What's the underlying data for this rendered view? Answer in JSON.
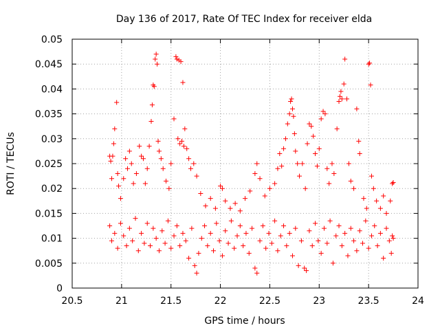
{
  "chart_data": {
    "type": "scatter",
    "title": "Day 136 of 2017, Rate Of TEC Index for receiver elda",
    "xlabel": "GPS time / hours",
    "ylabel": "ROTI / TECUs",
    "xlim": [
      20.5,
      24
    ],
    "ylim": [
      0,
      0.05
    ],
    "x_ticks": [
      20.5,
      21,
      21.5,
      22,
      22.5,
      23,
      23.5,
      24
    ],
    "x_tick_labels": [
      "20.5",
      "21",
      "21.5",
      "22",
      "22.5",
      "23",
      "23.5",
      "24"
    ],
    "y_ticks": [
      0,
      0.005,
      0.01,
      0.015,
      0.02,
      0.025,
      0.03,
      0.035,
      0.04,
      0.045,
      0.05
    ],
    "y_tick_labels": [
      "0",
      "0.005",
      "0.01",
      "0.015",
      "0.02",
      "0.025",
      "0.03",
      "0.035",
      "0.04",
      "0.045",
      "0.05"
    ],
    "grid": true,
    "marker": "+",
    "color": "#ff0000",
    "series": [
      {
        "points": [
          [
            20.88,
            0.0265
          ],
          [
            20.89,
            0.0255
          ],
          [
            20.9,
            0.022
          ],
          [
            20.91,
            0.0265
          ],
          [
            20.92,
            0.029
          ],
          [
            20.93,
            0.032
          ],
          [
            20.95,
            0.0373
          ],
          [
            20.96,
            0.023
          ],
          [
            20.97,
            0.0205
          ],
          [
            20.99,
            0.018
          ],
          [
            21.02,
            0.022
          ],
          [
            21.04,
            0.026
          ],
          [
            21.06,
            0.024
          ],
          [
            21.08,
            0.0275
          ],
          [
            21.1,
            0.025
          ],
          [
            21.12,
            0.021
          ],
          [
            21.15,
            0.023
          ],
          [
            21.18,
            0.0285
          ],
          [
            21.2,
            0.0265
          ],
          [
            21.22,
            0.026
          ],
          [
            21.24,
            0.021
          ],
          [
            21.26,
            0.024
          ],
          [
            21.28,
            0.0285
          ],
          [
            21.3,
            0.0335
          ],
          [
            21.31,
            0.0368
          ],
          [
            21.32,
            0.0408
          ],
          [
            21.33,
            0.0405
          ],
          [
            21.34,
            0.046
          ],
          [
            21.35,
            0.047
          ],
          [
            21.36,
            0.045
          ],
          [
            21.37,
            0.0295
          ],
          [
            21.38,
            0.0275
          ],
          [
            21.4,
            0.026
          ],
          [
            21.42,
            0.024
          ],
          [
            21.45,
            0.0215
          ],
          [
            21.48,
            0.02
          ],
          [
            21.5,
            0.025
          ],
          [
            21.53,
            0.034
          ],
          [
            21.55,
            0.0465
          ],
          [
            21.56,
            0.046
          ],
          [
            21.58,
            0.0458
          ],
          [
            21.6,
            0.0455
          ],
          [
            21.62,
            0.0413
          ],
          [
            21.64,
            0.032
          ],
          [
            21.57,
            0.03
          ],
          [
            21.59,
            0.029
          ],
          [
            21.61,
            0.0295
          ],
          [
            21.63,
            0.0285
          ],
          [
            21.66,
            0.028
          ],
          [
            21.68,
            0.026
          ],
          [
            21.7,
            0.024
          ],
          [
            21.73,
            0.025
          ],
          [
            21.76,
            0.0225
          ],
          [
            21.8,
            0.019
          ],
          [
            21.85,
            0.0165
          ],
          [
            21.9,
            0.018
          ],
          [
            21.95,
            0.016
          ],
          [
            22.0,
            0.0205
          ],
          [
            22.02,
            0.02
          ],
          [
            22.05,
            0.0175
          ],
          [
            22.1,
            0.016
          ],
          [
            22.15,
            0.017
          ],
          [
            22.2,
            0.0155
          ],
          [
            22.25,
            0.018
          ],
          [
            22.3,
            0.0195
          ],
          [
            22.35,
            0.023
          ],
          [
            22.37,
            0.025
          ],
          [
            22.4,
            0.022
          ],
          [
            22.45,
            0.0185
          ],
          [
            22.5,
            0.02
          ],
          [
            22.55,
            0.021
          ],
          [
            22.58,
            0.024
          ],
          [
            22.6,
            0.027
          ],
          [
            22.62,
            0.0245
          ],
          [
            22.64,
            0.028
          ],
          [
            22.66,
            0.03
          ],
          [
            22.68,
            0.033
          ],
          [
            22.7,
            0.035
          ],
          [
            22.71,
            0.0375
          ],
          [
            22.72,
            0.038
          ],
          [
            22.73,
            0.036
          ],
          [
            22.74,
            0.0345
          ],
          [
            22.75,
            0.031
          ],
          [
            22.76,
            0.0275
          ],
          [
            22.78,
            0.025
          ],
          [
            22.8,
            0.0225
          ],
          [
            22.83,
            0.025
          ],
          [
            22.86,
            0.02
          ],
          [
            22.88,
            0.029
          ],
          [
            22.9,
            0.033
          ],
          [
            22.92,
            0.0325
          ],
          [
            22.94,
            0.0305
          ],
          [
            22.96,
            0.027
          ],
          [
            22.98,
            0.0245
          ],
          [
            23.0,
            0.028
          ],
          [
            23.02,
            0.034
          ],
          [
            23.04,
            0.0355
          ],
          [
            23.06,
            0.035
          ],
          [
            23.08,
            0.024
          ],
          [
            23.1,
            0.021
          ],
          [
            23.13,
            0.025
          ],
          [
            23.15,
            0.023
          ],
          [
            23.18,
            0.032
          ],
          [
            23.2,
            0.0375
          ],
          [
            23.21,
            0.0385
          ],
          [
            23.22,
            0.0395
          ],
          [
            23.23,
            0.038
          ],
          [
            23.25,
            0.041
          ],
          [
            23.26,
            0.046
          ],
          [
            23.28,
            0.038
          ],
          [
            23.3,
            0.025
          ],
          [
            23.32,
            0.0215
          ],
          [
            23.35,
            0.02
          ],
          [
            23.38,
            0.036
          ],
          [
            23.4,
            0.0295
          ],
          [
            23.41,
            0.027
          ],
          [
            23.45,
            0.018
          ],
          [
            23.48,
            0.016
          ],
          [
            23.5,
            0.045
          ],
          [
            23.51,
            0.0452
          ],
          [
            23.52,
            0.0408
          ],
          [
            23.53,
            0.0225
          ],
          [
            23.55,
            0.02
          ],
          [
            23.58,
            0.0175
          ],
          [
            23.62,
            0.016
          ],
          [
            23.65,
            0.0185
          ],
          [
            23.68,
            0.015
          ],
          [
            23.72,
            0.0175
          ],
          [
            23.74,
            0.021
          ],
          [
            23.75,
            0.0212
          ],
          [
            20.88,
            0.0125
          ],
          [
            20.9,
            0.0095
          ],
          [
            20.93,
            0.011
          ],
          [
            20.96,
            0.008
          ],
          [
            20.99,
            0.013
          ],
          [
            21.02,
            0.0105
          ],
          [
            21.05,
            0.0085
          ],
          [
            21.08,
            0.012
          ],
          [
            21.11,
            0.0095
          ],
          [
            21.14,
            0.014
          ],
          [
            21.17,
            0.0075
          ],
          [
            21.2,
            0.011
          ],
          [
            21.23,
            0.009
          ],
          [
            21.26,
            0.013
          ],
          [
            21.29,
            0.0085
          ],
          [
            21.32,
            0.012
          ],
          [
            21.35,
            0.01
          ],
          [
            21.38,
            0.0075
          ],
          [
            21.41,
            0.0115
          ],
          [
            21.44,
            0.009
          ],
          [
            21.47,
            0.0135
          ],
          [
            21.5,
            0.008
          ],
          [
            21.53,
            0.0105
          ],
          [
            21.56,
            0.0125
          ],
          [
            21.59,
            0.0085
          ],
          [
            21.62,
            0.011
          ],
          [
            21.65,
            0.0095
          ],
          [
            21.68,
            0.006
          ],
          [
            21.71,
            0.012
          ],
          [
            21.74,
            0.0045
          ],
          [
            21.76,
            0.003
          ],
          [
            21.78,
            0.007
          ],
          [
            21.81,
            0.01
          ],
          [
            21.84,
            0.0125
          ],
          [
            21.87,
            0.0085
          ],
          [
            21.9,
            0.011
          ],
          [
            21.93,
            0.0075
          ],
          [
            21.96,
            0.013
          ],
          [
            21.99,
            0.0095
          ],
          [
            22.02,
            0.0065
          ],
          [
            22.05,
            0.0115
          ],
          [
            22.08,
            0.009
          ],
          [
            22.11,
            0.0135
          ],
          [
            22.14,
            0.008
          ],
          [
            22.17,
            0.0105
          ],
          [
            22.2,
            0.0125
          ],
          [
            22.23,
            0.0085
          ],
          [
            22.26,
            0.011
          ],
          [
            22.29,
            0.007
          ],
          [
            22.32,
            0.012
          ],
          [
            22.35,
            0.004
          ],
          [
            22.37,
            0.003
          ],
          [
            22.4,
            0.0095
          ],
          [
            22.43,
            0.0125
          ],
          [
            22.46,
            0.008
          ],
          [
            22.49,
            0.011
          ],
          [
            22.52,
            0.009
          ],
          [
            22.55,
            0.0135
          ],
          [
            22.58,
            0.0075
          ],
          [
            22.61,
            0.0105
          ],
          [
            22.64,
            0.0125
          ],
          [
            22.67,
            0.0085
          ],
          [
            22.7,
            0.011
          ],
          [
            22.73,
            0.0065
          ],
          [
            22.76,
            0.012
          ],
          [
            22.79,
            0.0045
          ],
          [
            22.82,
            0.0095
          ],
          [
            22.85,
            0.004
          ],
          [
            22.87,
            0.0035
          ],
          [
            22.9,
            0.0115
          ],
          [
            22.93,
            0.0085
          ],
          [
            22.96,
            0.013
          ],
          [
            22.99,
            0.0095
          ],
          [
            23.02,
            0.007
          ],
          [
            23.05,
            0.012
          ],
          [
            23.08,
            0.009
          ],
          [
            23.11,
            0.0135
          ],
          [
            23.14,
            0.005
          ],
          [
            23.17,
            0.0105
          ],
          [
            23.2,
            0.0125
          ],
          [
            23.23,
            0.0085
          ],
          [
            23.26,
            0.011
          ],
          [
            23.29,
            0.0065
          ],
          [
            23.32,
            0.012
          ],
          [
            23.35,
            0.0095
          ],
          [
            23.38,
            0.0075
          ],
          [
            23.41,
            0.0115
          ],
          [
            23.44,
            0.009
          ],
          [
            23.47,
            0.0135
          ],
          [
            23.5,
            0.008
          ],
          [
            23.53,
            0.0105
          ],
          [
            23.56,
            0.0125
          ],
          [
            23.59,
            0.0085
          ],
          [
            23.62,
            0.011
          ],
          [
            23.65,
            0.006
          ],
          [
            23.68,
            0.012
          ],
          [
            23.71,
            0.0095
          ],
          [
            23.74,
            0.0105
          ],
          [
            23.75,
            0.01
          ],
          [
            23.73,
            0.007
          ]
        ]
      }
    ]
  }
}
